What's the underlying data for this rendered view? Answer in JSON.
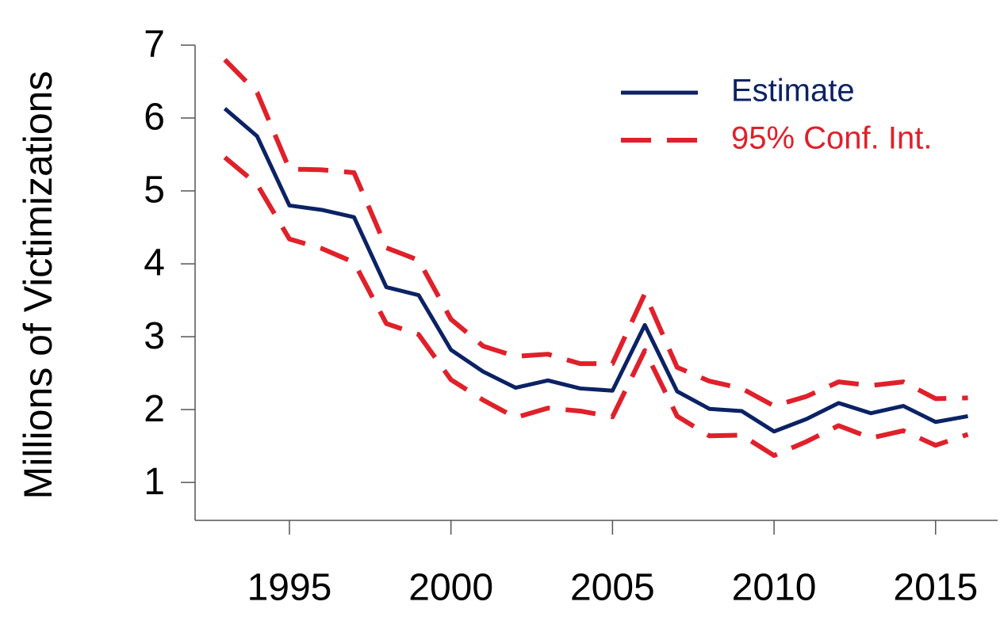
{
  "chart_data": {
    "type": "line",
    "y_label": "Millions of Victimizations",
    "x": [
      1993,
      1994,
      1995,
      1996,
      1997,
      1998,
      1999,
      2000,
      2001,
      2002,
      2003,
      2004,
      2005,
      2006,
      2007,
      2008,
      2009,
      2010,
      2011,
      2012,
      2013,
      2014,
      2015,
      2016
    ],
    "series": [
      {
        "name": "Estimate",
        "color": "#0b2265",
        "dashed": false,
        "values": [
          6.13,
          5.75,
          4.8,
          4.74,
          4.64,
          3.68,
          3.57,
          2.82,
          2.52,
          2.3,
          2.4,
          2.29,
          2.26,
          3.16,
          2.25,
          2.01,
          1.98,
          1.7,
          1.87,
          2.09,
          1.95,
          2.05,
          1.83,
          1.91
        ]
      },
      {
        "name": "95% Conf. Int.",
        "color": "#e0202a",
        "dashed": true,
        "upper": [
          6.8,
          6.35,
          5.3,
          5.29,
          5.25,
          4.22,
          4.05,
          3.24,
          2.87,
          2.73,
          2.76,
          2.63,
          2.63,
          3.59,
          2.58,
          2.39,
          2.29,
          2.05,
          2.18,
          2.38,
          2.33,
          2.38,
          2.15,
          2.16
        ],
        "lower": [
          5.46,
          5.09,
          4.34,
          4.21,
          4.02,
          3.18,
          3.03,
          2.41,
          2.13,
          1.89,
          2.02,
          1.98,
          1.9,
          2.81,
          1.91,
          1.64,
          1.65,
          1.37,
          1.56,
          1.78,
          1.61,
          1.71,
          1.51,
          1.66
        ]
      }
    ],
    "xlim": [
      1992.08,
      2016.92
    ],
    "xticks": [
      1995,
      2000,
      2005,
      2010,
      2015
    ],
    "ylim": [
      0.48,
      7
    ],
    "yticks": [
      1,
      2,
      3,
      4,
      5,
      6,
      7
    ],
    "legend": "top-right"
  }
}
